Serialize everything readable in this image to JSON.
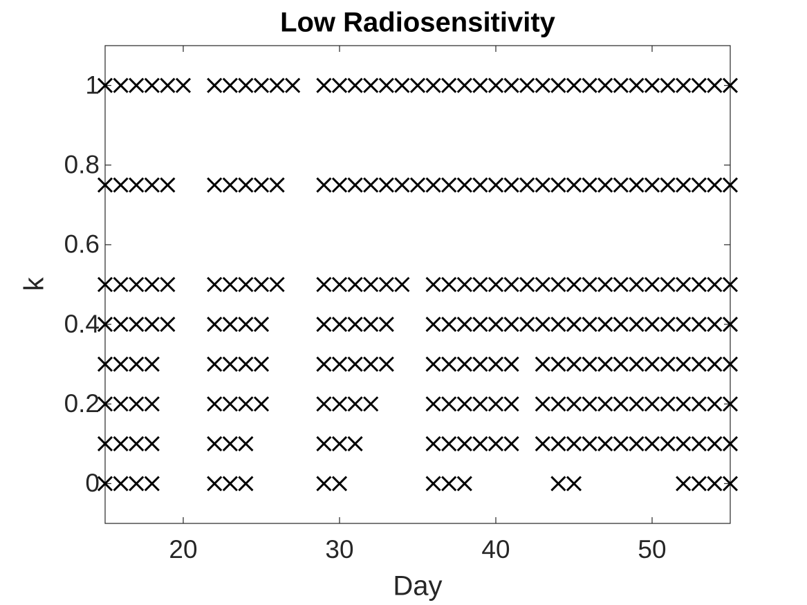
{
  "chart_data": {
    "type": "scatter",
    "title": "Low Radiosensitivity",
    "xlabel": "Day",
    "ylabel": "k",
    "xlim": [
      15,
      55
    ],
    "xticks": [
      20,
      30,
      40,
      50
    ],
    "ylim": [
      -0.1,
      1.1
    ],
    "yticks": [
      0,
      0.2,
      0.4,
      0.6,
      0.8,
      1
    ],
    "marker": "x",
    "color": "#000000",
    "series": [
      {
        "y": 1,
        "x": [
          15,
          16,
          17,
          18,
          19,
          20,
          22,
          23,
          24,
          25,
          26,
          27,
          29,
          30,
          31,
          32,
          33,
          34,
          35,
          36,
          37,
          38,
          39,
          40,
          41,
          42,
          43,
          44,
          45,
          46,
          47,
          48,
          49,
          50,
          51,
          52,
          53,
          54,
          55
        ]
      },
      {
        "y": 0.75,
        "x": [
          15,
          16,
          17,
          18,
          19,
          22,
          23,
          24,
          25,
          26,
          29,
          30,
          31,
          32,
          33,
          34,
          35,
          36,
          37,
          38,
          39,
          40,
          41,
          42,
          43,
          44,
          45,
          46,
          47,
          48,
          49,
          50,
          51,
          52,
          53,
          54,
          55
        ]
      },
      {
        "y": 0.5,
        "x": [
          15,
          16,
          17,
          18,
          19,
          22,
          23,
          24,
          25,
          26,
          29,
          30,
          31,
          32,
          33,
          34,
          36,
          37,
          38,
          39,
          40,
          41,
          42,
          43,
          44,
          45,
          46,
          47,
          48,
          49,
          50,
          51,
          52,
          53,
          54,
          55
        ]
      },
      {
        "y": 0.4,
        "x": [
          15,
          16,
          17,
          18,
          19,
          22,
          23,
          24,
          25,
          29,
          30,
          31,
          32,
          33,
          36,
          37,
          38,
          39,
          40,
          41,
          42,
          43,
          44,
          45,
          46,
          47,
          48,
          49,
          50,
          51,
          52,
          53,
          54,
          55
        ]
      },
      {
        "y": 0.3,
        "x": [
          15,
          16,
          17,
          18,
          22,
          23,
          24,
          25,
          29,
          30,
          31,
          32,
          33,
          36,
          37,
          38,
          39,
          40,
          41,
          43,
          44,
          45,
          46,
          47,
          48,
          49,
          50,
          51,
          52,
          53,
          54,
          55
        ]
      },
      {
        "y": 0.2,
        "x": [
          15,
          16,
          17,
          18,
          22,
          23,
          24,
          25,
          29,
          30,
          31,
          32,
          36,
          37,
          38,
          39,
          40,
          41,
          43,
          44,
          45,
          46,
          47,
          48,
          49,
          50,
          51,
          52,
          53,
          54,
          55
        ]
      },
      {
        "y": 0.1,
        "x": [
          15,
          16,
          17,
          18,
          22,
          23,
          24,
          29,
          30,
          31,
          36,
          37,
          38,
          39,
          40,
          41,
          43,
          44,
          45,
          46,
          47,
          48,
          49,
          50,
          51,
          52,
          53,
          54,
          55
        ]
      },
      {
        "y": 0,
        "x": [
          15,
          16,
          17,
          18,
          22,
          23,
          24,
          29,
          30,
          36,
          37,
          38,
          44,
          45,
          52,
          53,
          54,
          55
        ]
      }
    ]
  }
}
